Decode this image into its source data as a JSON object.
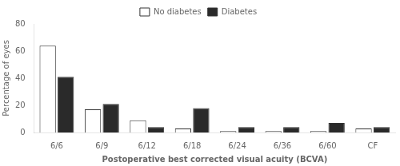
{
  "chart_data": {
    "type": "bar",
    "categories": [
      "6/6",
      "6/9",
      "6/12",
      "6/18",
      "6/24",
      "6/36",
      "6/60",
      "CF"
    ],
    "series": [
      {
        "name": "No diabetes",
        "color": "#ffffff",
        "values": [
          64,
          17,
          9,
          3,
          1,
          1,
          1,
          3
        ]
      },
      {
        "name": "Diabetes",
        "color": "#2a2a2a",
        "values": [
          41,
          21,
          4,
          18,
          4,
          4,
          7,
          4
        ]
      }
    ],
    "xlabel": "Postoperative best corrected visual acuity (BCVA)",
    "ylabel": "Percentage of eyes",
    "ylim": [
      0,
      80
    ],
    "yticks": [
      0,
      20,
      40,
      60,
      80
    ],
    "grid": false,
    "legend": "top"
  }
}
